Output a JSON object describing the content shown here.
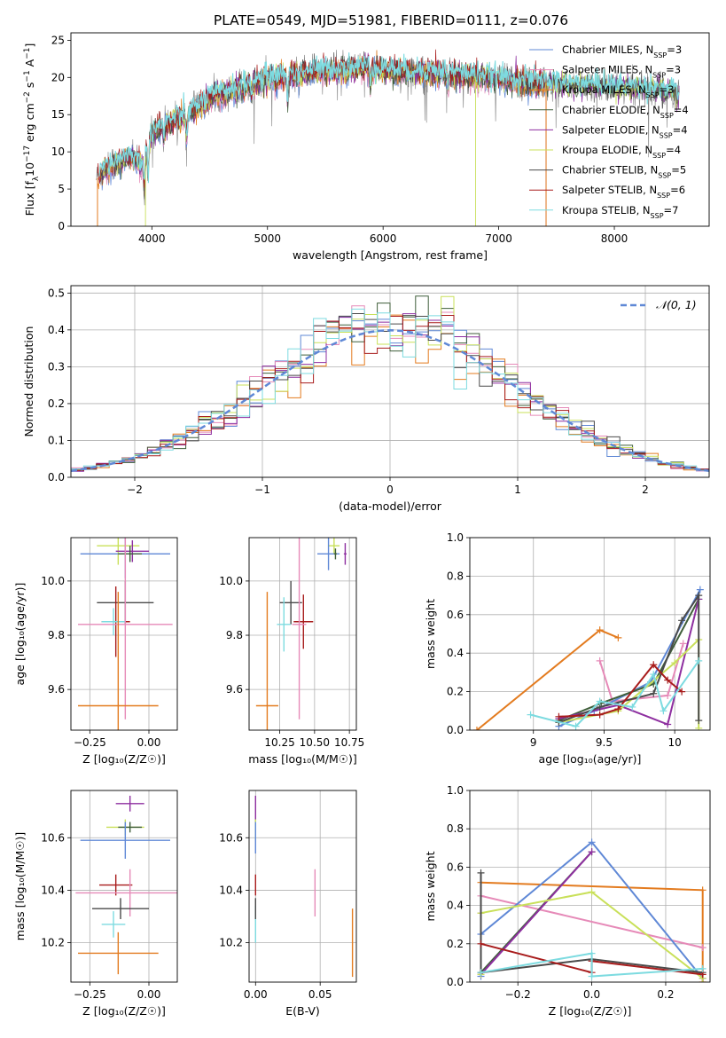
{
  "colors": {
    "chabrier_miles": "#5f88d6",
    "salpeter_miles": "#e68ab8",
    "kroupa_miles": "#e37b1f",
    "chabrier_elodie": "#3f5e3a",
    "salpeter_elodie": "#8e2fa0",
    "kroupa_elodie": "#c9e05a",
    "chabrier_stelib": "#4a4a4a",
    "salpeter_stelib": "#a81c1c",
    "kroupa_stelib": "#7ddbe0",
    "normal_curve": "#5f88d6",
    "spectrum_grey": "#7f7f7f",
    "grid": "#b0b0b0"
  },
  "chart_data": [
    {
      "id": "spectrum",
      "type": "line",
      "title": "PLATE=0549, MJD=51981, FIBERID=0111, z=0.076",
      "xlabel": "wavelength [Angstrom, rest frame]",
      "ylabel_parts": [
        "Flux [f",
        "λ",
        "10",
        "−17",
        " erg cm",
        "−2",
        " s",
        "−1",
        " A",
        "−1",
        "]"
      ],
      "xlim": [
        3300,
        8820
      ],
      "ylim": [
        0,
        26
      ],
      "xticks": [
        4000,
        5000,
        6000,
        7000,
        8000
      ],
      "yticks": [
        0,
        5,
        10,
        15,
        20,
        25
      ],
      "grid": false,
      "legend_position": "top-right",
      "legend": [
        {
          "label": "Chabrier MILES, N",
          "sub": "SSP",
          "value": "=3",
          "color_key": "chabrier_miles"
        },
        {
          "label": "Salpeter MILES, N",
          "sub": "SSP",
          "value": "=3",
          "color_key": "salpeter_miles"
        },
        {
          "label": "Kroupa MILES, N",
          "sub": "SSP",
          "value": "=3",
          "color_key": "kroupa_miles"
        },
        {
          "label": "Chabrier ELODIE, N",
          "sub": "SSP",
          "value": "=4",
          "color_key": "chabrier_elodie"
        },
        {
          "label": "Salpeter ELODIE, N",
          "sub": "SSP",
          "value": "=4",
          "color_key": "salpeter_elodie"
        },
        {
          "label": "Kroupa ELODIE, N",
          "sub": "SSP",
          "value": "=4",
          "color_key": "kroupa_elodie"
        },
        {
          "label": "Chabrier STELIB, N",
          "sub": "SSP",
          "value": "=5",
          "color_key": "chabrier_stelib"
        },
        {
          "label": "Salpeter STELIB, N",
          "sub": "SSP",
          "value": "=6",
          "color_key": "salpeter_stelib"
        },
        {
          "label": "Kroupa STELIB, N",
          "sub": "SSP",
          "value": "=7",
          "color_key": "kroupa_stelib"
        }
      ],
      "continuum": [
        [
          3520,
          6.5
        ],
        [
          3600,
          7.8
        ],
        [
          3700,
          8.5
        ],
        [
          3800,
          9.5
        ],
        [
          3900,
          8.2
        ],
        [
          3950,
          9.5
        ],
        [
          4000,
          12.5
        ],
        [
          4100,
          13.5
        ],
        [
          4200,
          14.2
        ],
        [
          4300,
          14.8
        ],
        [
          4400,
          16.0
        ],
        [
          4500,
          17.2
        ],
        [
          4700,
          18.2
        ],
        [
          4900,
          19.2
        ],
        [
          5000,
          19.8
        ],
        [
          5170,
          20.2
        ],
        [
          5300,
          20.6
        ],
        [
          5500,
          20.8
        ],
        [
          5800,
          21.2
        ],
        [
          6000,
          21.0
        ],
        [
          6200,
          20.6
        ],
        [
          6400,
          20.6
        ],
        [
          6600,
          20.4
        ],
        [
          6800,
          20.1
        ],
        [
          7000,
          19.8
        ],
        [
          7200,
          19.4
        ],
        [
          7400,
          19.2
        ],
        [
          7600,
          19.0
        ],
        [
          7800,
          18.8
        ],
        [
          8000,
          18.6
        ],
        [
          8200,
          18.5
        ],
        [
          8400,
          18.3
        ],
        [
          8560,
          17.8
        ]
      ],
      "absorption_features": [
        [
          3934,
          4.5
        ],
        [
          3969,
          4.0
        ],
        [
          4102,
          2.0
        ],
        [
          4300,
          3.5
        ],
        [
          4861,
          1.8
        ],
        [
          5175,
          4.0
        ],
        [
          5270,
          1.5
        ],
        [
          5890,
          2.5
        ],
        [
          6563,
          1.5
        ],
        [
          7600,
          1.2
        ],
        [
          8542,
          1.5
        ],
        [
          8662,
          1.2
        ]
      ],
      "noise_amplitude": 2.0
    },
    {
      "id": "residual-histogram",
      "type": "histogram",
      "xlabel": "(data-model)/error",
      "ylabel": "Normed distribution",
      "xlim": [
        -2.5,
        2.5
      ],
      "ylim": [
        0,
        0.52
      ],
      "xticks": [
        -2,
        -1,
        0,
        1,
        2
      ],
      "yticks": [
        0.0,
        0.1,
        0.2,
        0.3,
        0.4,
        0.5
      ],
      "grid": true,
      "bin_width": 0.1,
      "legend_position": "top-right",
      "legend": [
        {
          "label": "𝒩(0, 1)",
          "color_key": "normal_curve",
          "dashed": true
        }
      ]
    },
    {
      "id": "age-vs-z",
      "type": "errorbar",
      "xlabel": "Z [log₁₀(Z/Z☉)]",
      "ylabel": "age  [log₁₀(age/yr)]",
      "xlim": [
        -0.33,
        0.12
      ],
      "ylim": [
        9.45,
        10.16
      ],
      "xticks": [
        -0.25,
        0.0
      ],
      "xticklabels": [
        "−0.25",
        "0.00"
      ],
      "yticks": [
        9.6,
        9.8,
        10.0
      ],
      "grid": true,
      "points": [
        {
          "series": "kroupa_elodie",
          "x": -0.13,
          "y": 10.13,
          "xerr": 0.09,
          "yerr": 0.07
        },
        {
          "series": "chabrier_miles",
          "x": -0.1,
          "y": 10.1,
          "xerr": 0.19,
          "yerr": 0.09
        },
        {
          "series": "salpeter_elodie",
          "x": -0.07,
          "y": 10.11,
          "xerr": 0.07,
          "yerr": 0.04
        },
        {
          "series": "chabrier_elodie",
          "x": -0.08,
          "y": 10.1,
          "xerr": 0.05,
          "yerr": 0.03
        },
        {
          "series": "chabrier_stelib",
          "x": -0.1,
          "y": 9.92,
          "xerr": 0.12,
          "yerr": 0.08
        },
        {
          "series": "salpeter_stelib",
          "x": -0.14,
          "y": 9.85,
          "xerr": 0.06,
          "yerr": 0.13
        },
        {
          "series": "kroupa_stelib",
          "x": -0.15,
          "y": 9.85,
          "xerr": 0.05,
          "yerr": 0.05
        },
        {
          "series": "salpeter_miles",
          "x": -0.1,
          "y": 9.84,
          "xerr": 0.2,
          "yerr": 0.35
        },
        {
          "series": "kroupa_miles",
          "x": -0.13,
          "y": 9.54,
          "xerr": 0.17,
          "yerr": 0.42
        }
      ]
    },
    {
      "id": "age-vs-mass",
      "type": "errorbar",
      "xlabel": "mass [log₁₀(M/M☉)]",
      "ylabel": "",
      "xlim": [
        10.03,
        10.8
      ],
      "ylim": [
        9.45,
        10.16
      ],
      "xticks": [
        10.25,
        10.5,
        10.75
      ],
      "xticklabels": [
        "10.25",
        "10.50",
        "10.75"
      ],
      "yticks": [
        9.6,
        9.8,
        10.0
      ],
      "grid": true,
      "points": [
        {
          "series": "kroupa_elodie",
          "x": 10.64,
          "y": 10.13,
          "xerr": 0.04,
          "yerr": 0.03
        },
        {
          "series": "chabrier_miles",
          "x": 10.6,
          "y": 10.1,
          "xerr": 0.08,
          "yerr": 0.06
        },
        {
          "series": "salpeter_elodie",
          "x": 10.72,
          "y": 10.1,
          "xerr": 0.01,
          "yerr": 0.04
        },
        {
          "series": "chabrier_elodie",
          "x": 10.65,
          "y": 10.1,
          "xerr": 0.01,
          "yerr": 0.02
        },
        {
          "series": "chabrier_stelib",
          "x": 10.33,
          "y": 9.92,
          "xerr": 0.08,
          "yerr": 0.08
        },
        {
          "series": "salpeter_stelib",
          "x": 10.42,
          "y": 9.85,
          "xerr": 0.07,
          "yerr": 0.1
        },
        {
          "series": "kroupa_stelib",
          "x": 10.28,
          "y": 9.84,
          "xerr": 0.05,
          "yerr": 0.1
        },
        {
          "series": "salpeter_miles",
          "x": 10.39,
          "y": 9.84,
          "xerr": 0.05,
          "yerr": 0.35
        },
        {
          "series": "kroupa_miles",
          "x": 10.16,
          "y": 9.54,
          "xerr": 0.08,
          "yerr": 0.42
        }
      ]
    },
    {
      "id": "mass-weight-vs-age",
      "type": "line",
      "xlabel": "age  [log₁₀(age/yr)]",
      "ylabel": "mass weight",
      "xlim": [
        8.55,
        10.25
      ],
      "ylim": [
        0,
        1.0
      ],
      "xticks": [
        9.0,
        9.5,
        10.0
      ],
      "yticks": [
        0.0,
        0.2,
        0.4,
        0.6,
        0.8,
        1.0
      ],
      "grid": true,
      "series": [
        {
          "key": "kroupa_miles",
          "x": [
            8.6,
            9.47,
            9.6
          ],
          "y": [
            0.0,
            0.52,
            0.48
          ]
        },
        {
          "key": "salpeter_miles",
          "x": [
            9.47,
            9.56,
            9.95,
            10.06
          ],
          "y": [
            0.36,
            0.15,
            0.18,
            0.45
          ]
        },
        {
          "key": "chabrier_miles",
          "x": [
            9.18,
            9.43,
            9.83,
            10.18
          ],
          "y": [
            0.02,
            0.1,
            0.25,
            0.73
          ]
        },
        {
          "key": "chabrier_elodie",
          "x": [
            9.18,
            9.48,
            9.85,
            10.17
          ],
          "y": [
            0.05,
            0.14,
            0.24,
            0.68
          ]
        },
        {
          "key": "salpeter_elodie",
          "x": [
            9.18,
            9.6,
            9.95,
            10.17
          ],
          "y": [
            0.06,
            0.13,
            0.03,
            0.68
          ]
        },
        {
          "key": "kroupa_elodie",
          "x": [
            9.18,
            9.6,
            10.0,
            10.17,
            10.17
          ],
          "y": [
            0.04,
            0.1,
            0.35,
            0.47,
            0.01
          ]
        },
        {
          "key": "chabrier_stelib",
          "x": [
            9.18,
            9.47,
            9.85,
            10.05,
            10.17,
            10.17
          ],
          "y": [
            0.04,
            0.12,
            0.19,
            0.57,
            0.7,
            0.05
          ]
        },
        {
          "key": "salpeter_stelib",
          "x": [
            9.18,
            9.47,
            9.6,
            9.85,
            9.95,
            10.05
          ],
          "y": [
            0.07,
            0.08,
            0.11,
            0.34,
            0.26,
            0.2
          ]
        },
        {
          "key": "kroupa_stelib",
          "x": [
            8.98,
            9.3,
            9.47,
            9.7,
            9.85,
            9.92,
            10.17
          ],
          "y": [
            0.08,
            0.02,
            0.15,
            0.12,
            0.29,
            0.1,
            0.36
          ]
        }
      ]
    },
    {
      "id": "mass-vs-z",
      "type": "errorbar",
      "xlabel": "Z [log₁₀(Z/Z☉)]",
      "ylabel": "mass [log₁₀(M/M☉)]",
      "xlim": [
        -0.33,
        0.12
      ],
      "ylim": [
        10.05,
        10.78
      ],
      "xticks": [
        -0.25,
        0.0
      ],
      "xticklabels": [
        "−0.25",
        "0.00"
      ],
      "yticks": [
        10.2,
        10.4,
        10.6
      ],
      "grid": true,
      "points": [
        {
          "series": "salpeter_elodie",
          "x": -0.08,
          "y": 10.73,
          "xerr": 0.06,
          "yerr": 0.03
        },
        {
          "series": "kroupa_elodie",
          "x": -0.1,
          "y": 10.64,
          "xerr": 0.08,
          "yerr": 0.03
        },
        {
          "series": "chabrier_elodie",
          "x": -0.08,
          "y": 10.64,
          "xerr": 0.05,
          "yerr": 0.02
        },
        {
          "series": "chabrier_miles",
          "x": -0.1,
          "y": 10.59,
          "xerr": 0.19,
          "yerr": 0.07
        },
        {
          "series": "salpeter_stelib",
          "x": -0.14,
          "y": 10.42,
          "xerr": 0.07,
          "yerr": 0.04
        },
        {
          "series": "salpeter_miles",
          "x": -0.08,
          "y": 10.39,
          "xerr": 0.23,
          "yerr": 0.09
        },
        {
          "series": "chabrier_stelib",
          "x": -0.12,
          "y": 10.33,
          "xerr": 0.12,
          "yerr": 0.04
        },
        {
          "series": "kroupa_stelib",
          "x": -0.15,
          "y": 10.27,
          "xerr": 0.05,
          "yerr": 0.05
        },
        {
          "series": "kroupa_miles",
          "x": -0.13,
          "y": 10.16,
          "xerr": 0.17,
          "yerr": 0.08
        }
      ]
    },
    {
      "id": "mass-vs-ebv",
      "type": "errorbar",
      "xlabel": "E(B-V)",
      "ylabel": "",
      "xlim": [
        -0.005,
        0.078
      ],
      "ylim": [
        10.05,
        10.78
      ],
      "xticks": [
        0.0,
        0.05
      ],
      "xticklabels": [
        "0.00",
        "0.05"
      ],
      "yticks": [
        10.2,
        10.4,
        10.6
      ],
      "grid": true,
      "points": [
        {
          "series": "salpeter_elodie",
          "x": 0.0,
          "y": 10.71,
          "xerr": 0.0,
          "yerr": 0.05
        },
        {
          "series": "kroupa_elodie",
          "x": 0.0,
          "y": 10.63,
          "xerr": 0.0,
          "yerr": 0.04
        },
        {
          "series": "chabrier_miles",
          "x": 0.0,
          "y": 10.6,
          "xerr": 0.0,
          "yerr": 0.06
        },
        {
          "series": "salpeter_stelib",
          "x": 0.0,
          "y": 10.42,
          "xerr": 0.0,
          "yerr": 0.04
        },
        {
          "series": "kroupa_stelib",
          "x": 0.0,
          "y": 10.27,
          "xerr": 0.0,
          "yerr": 0.07
        },
        {
          "series": "chabrier_stelib",
          "x": 0.0,
          "y": 10.33,
          "xerr": 0.0,
          "yerr": 0.04
        },
        {
          "series": "salpeter_miles",
          "x": 0.046,
          "y": 10.39,
          "xerr": 0.0,
          "yerr": 0.09
        },
        {
          "series": "kroupa_miles",
          "x": 0.075,
          "y": 10.2,
          "xerr": 0.0,
          "yerr": 0.13
        }
      ]
    },
    {
      "id": "mass-weight-vs-z",
      "type": "line",
      "xlabel": "Z [log₁₀(Z/Z☉)]",
      "ylabel": "mass weight",
      "xlim": [
        -0.33,
        0.32
      ],
      "ylim": [
        0,
        1.0
      ],
      "xticks": [
        -0.2,
        0.0,
        0.2
      ],
      "xticklabels": [
        "−0.2",
        "0.0",
        "0.2"
      ],
      "yticks": [
        0.0,
        0.2,
        0.4,
        0.6,
        0.8,
        1.0
      ],
      "grid": true,
      "series": [
        {
          "key": "kroupa_miles",
          "x": [
            -0.3,
            0.3,
            0.3
          ],
          "y": [
            0.52,
            0.48,
            0.0
          ]
        },
        {
          "key": "salpeter_miles",
          "x": [
            -0.3,
            -0.3,
            0.3
          ],
          "y": [
            0.36,
            0.45,
            0.18
          ]
        },
        {
          "key": "chabrier_miles",
          "x": [
            -0.3,
            -0.3,
            0.0,
            0.3
          ],
          "y": [
            0.03,
            0.25,
            0.73,
            0.02
          ]
        },
        {
          "key": "chabrier_elodie",
          "x": [
            -0.3,
            0.0
          ],
          "y": [
            0.05,
            0.68
          ]
        },
        {
          "key": "salpeter_elodie",
          "x": [
            -0.3,
            0.0
          ],
          "y": [
            0.04,
            0.68
          ]
        },
        {
          "key": "kroupa_elodie",
          "x": [
            -0.3,
            -0.3,
            0.0,
            0.3
          ],
          "y": [
            0.04,
            0.36,
            0.47,
            0.02
          ]
        },
        {
          "key": "chabrier_stelib",
          "x": [
            -0.3,
            -0.3,
            0.0,
            0.3
          ],
          "y": [
            0.57,
            0.05,
            0.12,
            0.05
          ]
        },
        {
          "key": "salpeter_stelib",
          "x": [
            -0.3,
            0.0,
            0.0,
            0.3
          ],
          "y": [
            0.2,
            0.05,
            0.11,
            0.04
          ]
        },
        {
          "key": "kroupa_stelib",
          "x": [
            -0.3,
            0.0,
            0.0,
            0.3
          ],
          "y": [
            0.05,
            0.15,
            0.03,
            0.07
          ]
        }
      ]
    }
  ]
}
